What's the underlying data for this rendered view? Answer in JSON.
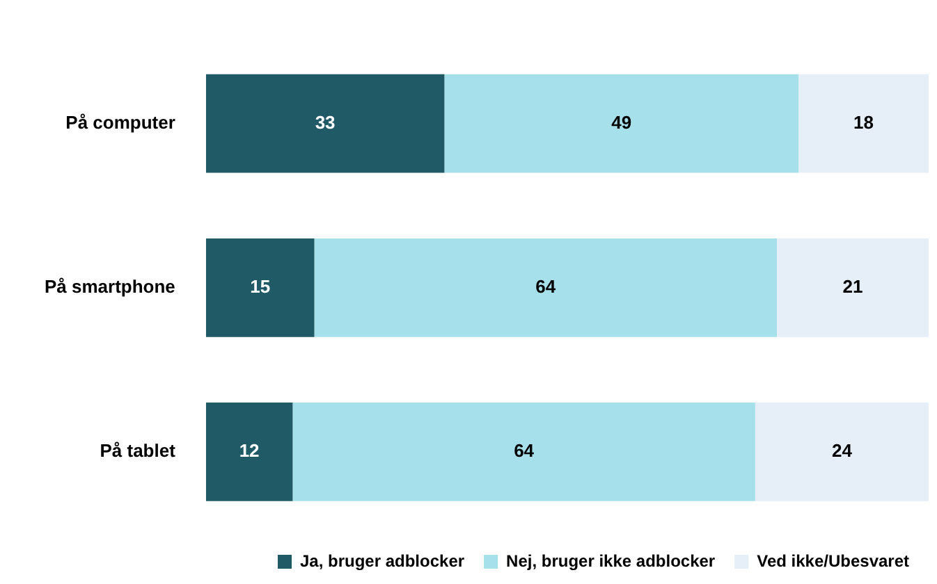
{
  "chart_data": {
    "type": "bar",
    "orientation": "horizontal",
    "stacked": true,
    "data_labels": true,
    "legend": "bottom",
    "grid": false,
    "categories": [
      "På computer",
      "På smartphone",
      "På tablet"
    ],
    "series": [
      {
        "name": "Ja, bruger adblocker",
        "color": "#1f5a66",
        "values": [
          33,
          15,
          12
        ]
      },
      {
        "name": "Nej, bruger ikke adblocker",
        "color": "#a6e0ea",
        "values": [
          49,
          64,
          64
        ]
      },
      {
        "name": "Ved ikke/Ubesvaret",
        "color": "#e6eef8",
        "values": [
          18,
          21,
          24
        ]
      }
    ]
  }
}
